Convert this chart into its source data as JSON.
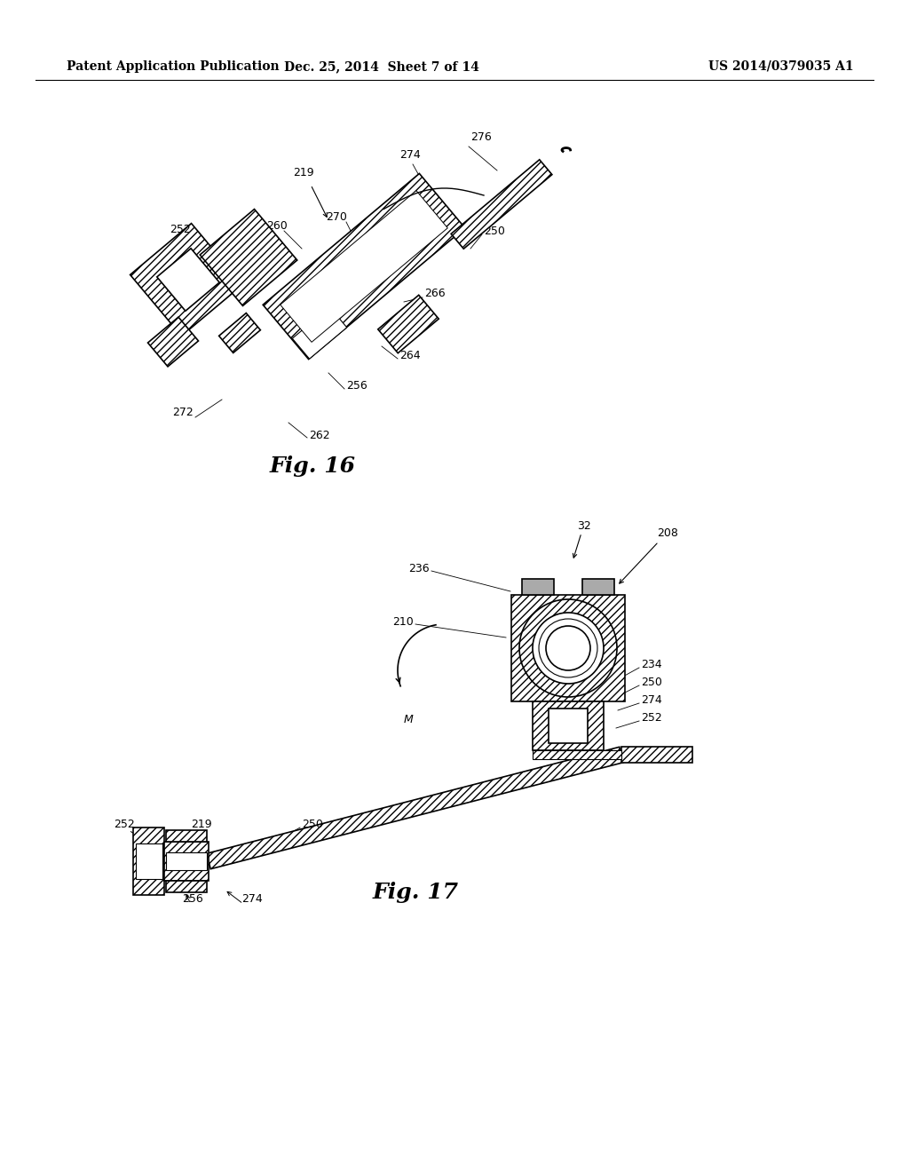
{
  "header_left": "Patent Application Publication",
  "header_center": "Dec. 25, 2014  Sheet 7 of 14",
  "header_right": "US 2014/0379035 A1",
  "fig16_label": "Fig. 16",
  "fig17_label": "Fig. 17",
  "background_color": "#ffffff",
  "line_color": "#000000",
  "header_fontsize": 10,
  "fig_label_fontsize": 18,
  "ref_num_fontsize": 9
}
